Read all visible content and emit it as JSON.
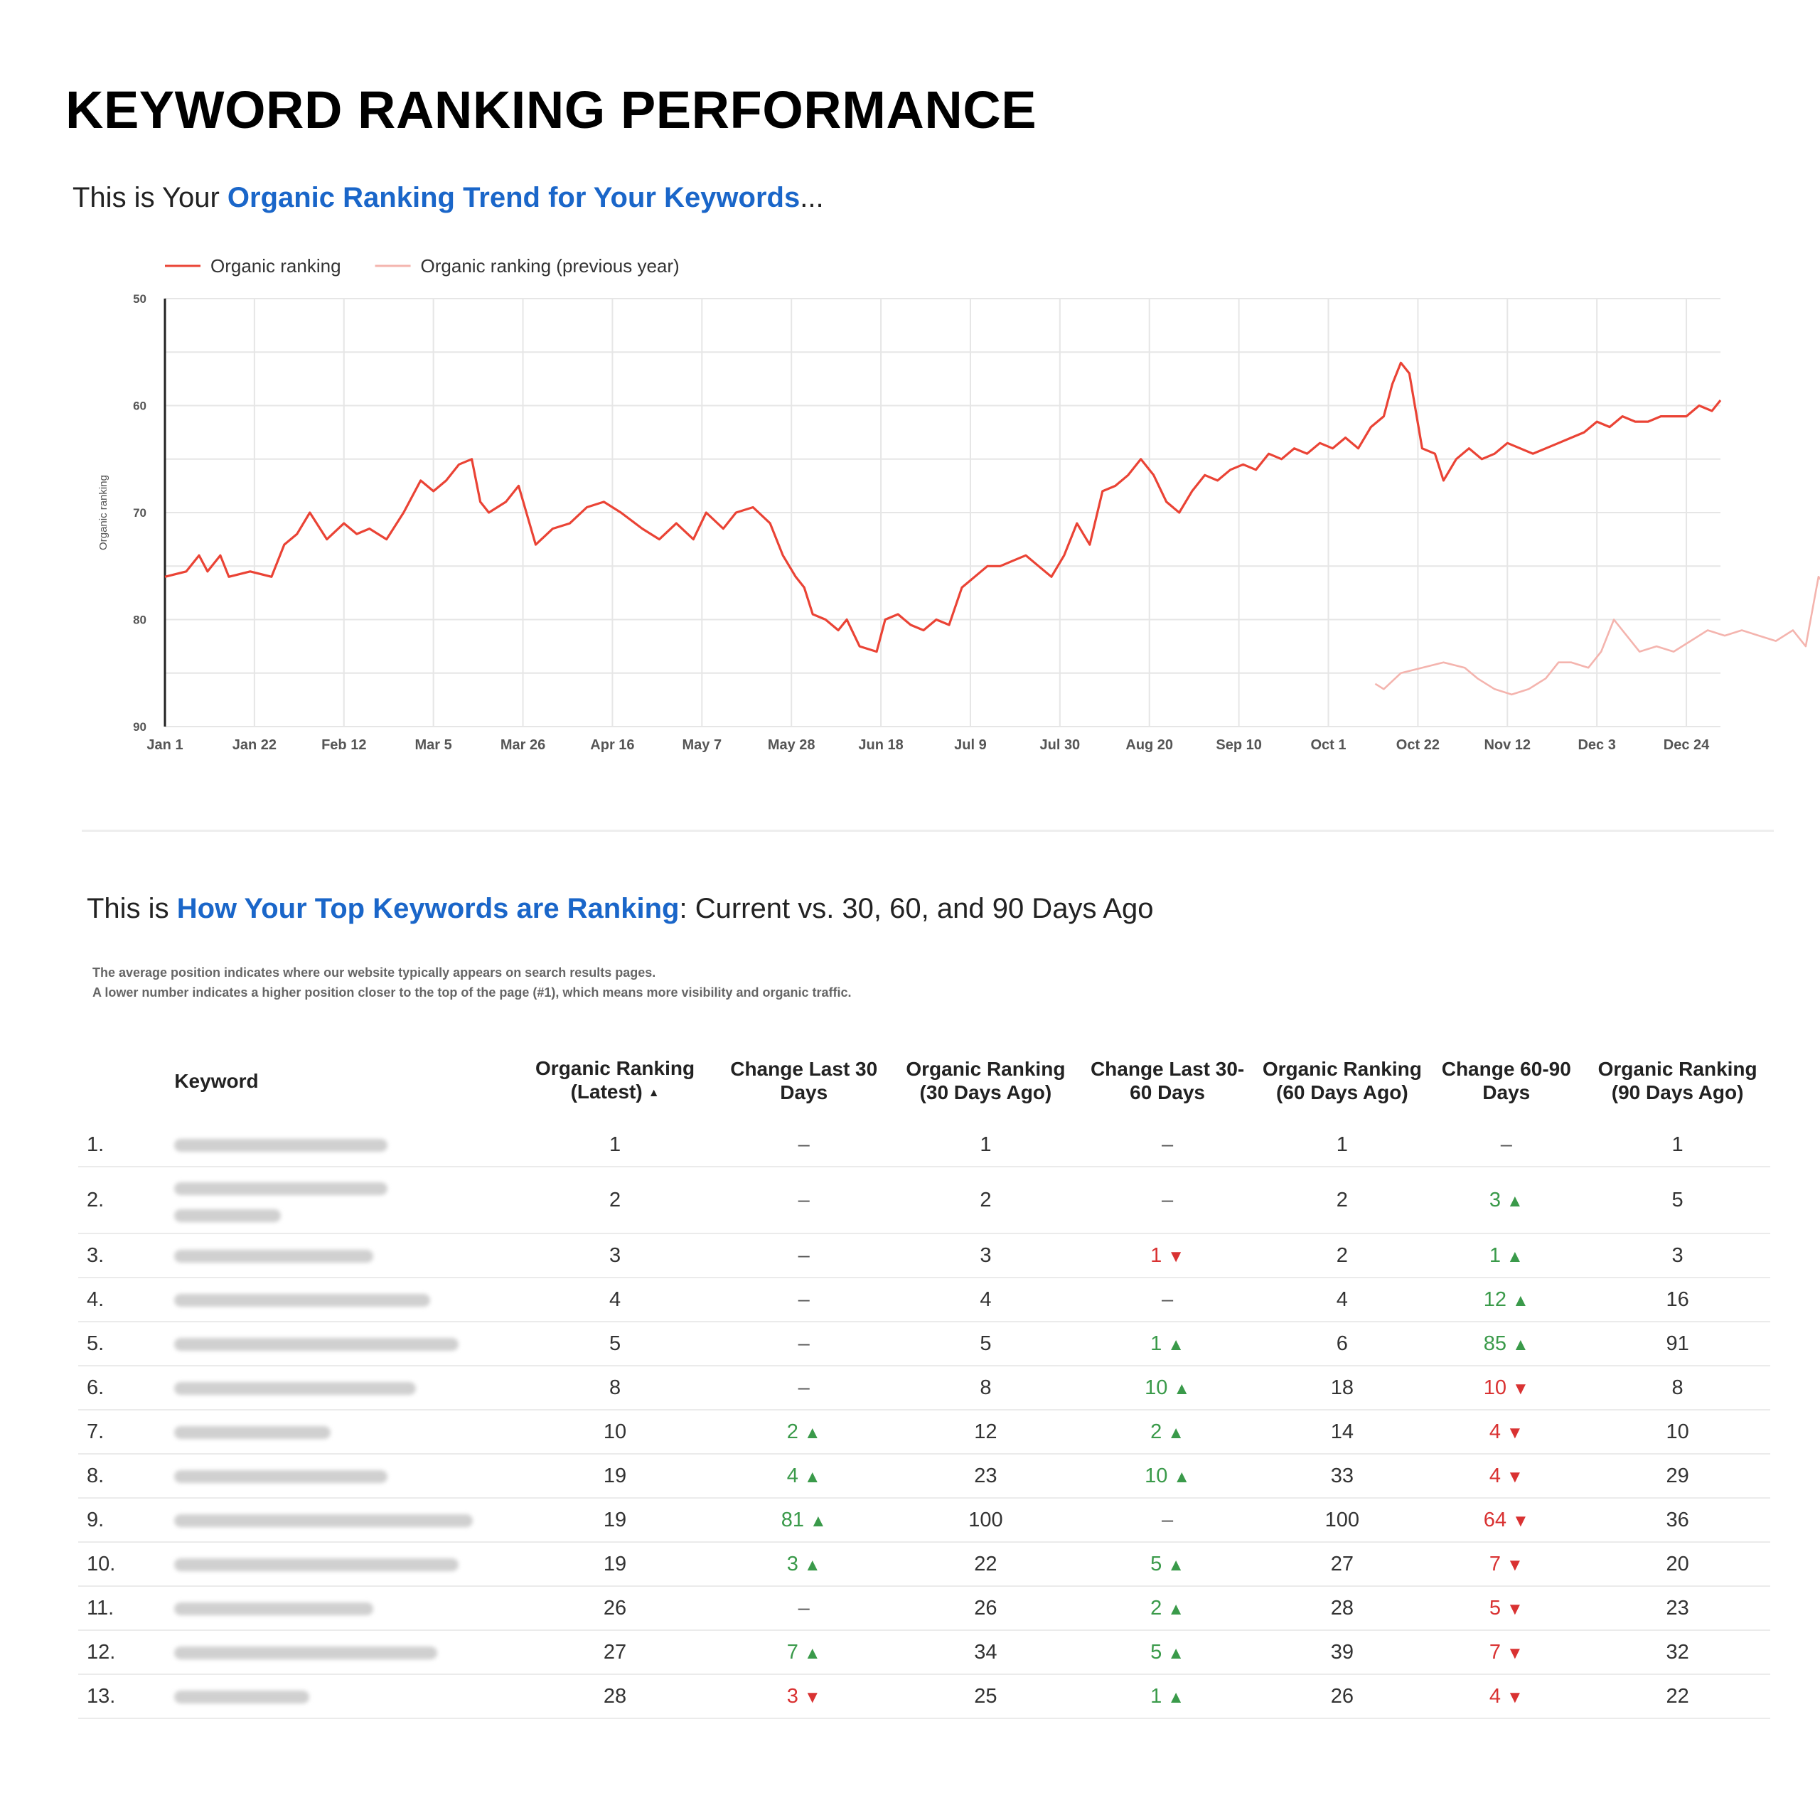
{
  "page": {
    "title": "KEYWORD RANKING PERFORMANCE",
    "sub1_pre": "This is Your ",
    "sub1_hl": "Organic Ranking Trend for Your Keywords",
    "sub1_post": "...",
    "sub2_pre": "This is ",
    "sub2_hl": "How Your Top Keywords are Ranking",
    "sub2_post": ": Current vs. 30, 60, and 90 Days Ago",
    "note1": "The average position indicates where our website typically appears on search results pages.",
    "note2": "A lower number indicates a higher position closer to the top of the page (#1), which means more visibility and organic traffic."
  },
  "colors": {
    "accent": "#1a66c9",
    "series_current": "#ea4335",
    "series_previous": "#f4b4ae",
    "up": "#3a9a4a",
    "down": "#d93232"
  },
  "icons": {
    "up": "▲",
    "down": "▼",
    "sort": "▲"
  },
  "chart_data": {
    "type": "line",
    "ylabel": "Organic ranking",
    "ylim": [
      90,
      50
    ],
    "y_reversed": true,
    "y_ticks": [
      "50",
      "60",
      "70",
      "80",
      "90"
    ],
    "x_ticks": [
      "Jan 1",
      "Jan 22",
      "Feb 12",
      "Mar 5",
      "Mar 26",
      "Apr 16",
      "May 7",
      "May 28",
      "Jun 18",
      "Jul 9",
      "Jul 30",
      "Aug 20",
      "Sep 10",
      "Oct 1",
      "Oct 22",
      "Nov 12",
      "Dec 3",
      "Dec 24"
    ],
    "grid": true,
    "legend_position": "top-left",
    "series": [
      {
        "name": "Organic ranking",
        "color": "#ea4335",
        "points": [
          [
            0,
            76
          ],
          [
            5,
            75.5
          ],
          [
            8,
            74
          ],
          [
            10,
            75.5
          ],
          [
            13,
            74
          ],
          [
            15,
            76
          ],
          [
            20,
            75.5
          ],
          [
            25,
            76
          ],
          [
            28,
            73
          ],
          [
            31,
            72
          ],
          [
            34,
            70
          ],
          [
            38,
            72.5
          ],
          [
            42,
            71
          ],
          [
            45,
            72
          ],
          [
            48,
            71.5
          ],
          [
            52,
            72.5
          ],
          [
            56,
            70
          ],
          [
            60,
            67
          ],
          [
            63,
            68
          ],
          [
            66,
            67
          ],
          [
            69,
            65.5
          ],
          [
            72,
            65
          ],
          [
            74,
            69
          ],
          [
            76,
            70
          ],
          [
            80,
            69
          ],
          [
            83,
            67.5
          ],
          [
            87,
            73
          ],
          [
            91,
            71.5
          ],
          [
            95,
            71
          ],
          [
            99,
            69.5
          ],
          [
            103,
            69
          ],
          [
            107,
            70
          ],
          [
            112,
            71.5
          ],
          [
            116,
            72.5
          ],
          [
            120,
            71
          ],
          [
            124,
            72.5
          ],
          [
            127,
            70
          ],
          [
            131,
            71.5
          ],
          [
            134,
            70
          ],
          [
            138,
            69.5
          ],
          [
            142,
            71
          ],
          [
            145,
            74
          ],
          [
            148,
            76
          ],
          [
            150,
            77
          ],
          [
            152,
            79.5
          ],
          [
            155,
            80
          ],
          [
            158,
            81
          ],
          [
            160,
            80
          ],
          [
            163,
            82.5
          ],
          [
            167,
            83
          ],
          [
            169,
            80
          ],
          [
            172,
            79.5
          ],
          [
            175,
            80.5
          ],
          [
            178,
            81
          ],
          [
            181,
            80
          ],
          [
            184,
            80.5
          ],
          [
            187,
            77
          ],
          [
            190,
            76
          ],
          [
            193,
            75
          ],
          [
            196,
            75
          ],
          [
            199,
            74.5
          ],
          [
            202,
            74
          ],
          [
            205,
            75
          ],
          [
            208,
            76
          ],
          [
            211,
            74
          ],
          [
            214,
            71
          ],
          [
            217,
            73
          ],
          [
            220,
            68
          ],
          [
            223,
            67.5
          ],
          [
            226,
            66.5
          ],
          [
            229,
            65
          ],
          [
            232,
            66.5
          ],
          [
            235,
            69
          ],
          [
            238,
            70
          ],
          [
            241,
            68
          ],
          [
            244,
            66.5
          ],
          [
            247,
            67
          ],
          [
            250,
            66
          ],
          [
            253,
            65.5
          ],
          [
            256,
            66
          ],
          [
            259,
            64.5
          ],
          [
            262,
            65
          ],
          [
            265,
            64
          ],
          [
            268,
            64.5
          ],
          [
            271,
            63.5
          ],
          [
            274,
            64
          ],
          [
            277,
            63
          ],
          [
            280,
            64
          ],
          [
            283,
            62
          ],
          [
            286,
            61
          ],
          [
            288,
            58
          ],
          [
            290,
            56
          ],
          [
            292,
            57
          ],
          [
            295,
            64
          ],
          [
            298,
            64.5
          ],
          [
            300,
            67
          ],
          [
            303,
            65
          ],
          [
            306,
            64
          ],
          [
            309,
            65
          ],
          [
            312,
            64.5
          ],
          [
            315,
            63.5
          ],
          [
            318,
            64
          ],
          [
            321,
            64.5
          ],
          [
            324,
            64
          ],
          [
            327,
            63.5
          ],
          [
            330,
            63
          ],
          [
            333,
            62.5
          ],
          [
            336,
            61.5
          ],
          [
            339,
            62
          ],
          [
            342,
            61
          ],
          [
            345,
            61.5
          ],
          [
            348,
            61.5
          ],
          [
            351,
            61
          ],
          [
            354,
            61
          ],
          [
            357,
            61
          ],
          [
            360,
            60
          ],
          [
            363,
            60.5
          ],
          [
            365,
            59.5
          ]
        ]
      },
      {
        "name": "Organic ranking (previous year)",
        "color": "#f4b4ae",
        "points": [
          [
            284,
            86
          ],
          [
            286,
            86.5
          ],
          [
            290,
            85
          ],
          [
            295,
            84.5
          ],
          [
            300,
            84
          ],
          [
            305,
            84.5
          ],
          [
            308,
            85.5
          ],
          [
            312,
            86.5
          ],
          [
            316,
            87
          ],
          [
            320,
            86.5
          ],
          [
            324,
            85.5
          ],
          [
            327,
            84
          ],
          [
            330,
            84
          ],
          [
            334,
            84.5
          ],
          [
            337,
            83
          ],
          [
            340,
            80
          ],
          [
            343,
            81.5
          ],
          [
            346,
            83
          ],
          [
            350,
            82.5
          ],
          [
            354,
            83
          ],
          [
            358,
            82
          ],
          [
            362,
            81
          ],
          [
            366,
            81.5
          ],
          [
            370,
            81
          ],
          [
            374,
            81.5
          ],
          [
            378,
            82
          ],
          [
            382,
            81
          ],
          [
            385,
            82.5
          ],
          [
            388,
            76
          ],
          [
            390,
            77
          ],
          [
            392,
            76
          ]
        ]
      }
    ]
  },
  "table": {
    "headers": [
      "Keyword",
      "Organic Ranking (Latest)",
      "Change Last 30 Days",
      "Organic Ranking (30 Days Ago)",
      "Change Last 30-60 Days",
      "Organic Ranking (60 Days Ago)",
      "Change 60-90 Days",
      "Organic Ranking (90 Days Ago)"
    ],
    "rows": [
      {
        "idx": "1.",
        "latest": "1",
        "c30": "–",
        "c30_dir": "none",
        "r30": "1",
        "c60": "–",
        "c60_dir": "none",
        "r60": "1",
        "c90": "–",
        "c90_dir": "none",
        "r90": "1"
      },
      {
        "idx": "2.",
        "latest": "2",
        "c30": "–",
        "c30_dir": "none",
        "r30": "2",
        "c60": "–",
        "c60_dir": "none",
        "r60": "2",
        "c90": "3",
        "c90_dir": "up",
        "r90": "5"
      },
      {
        "idx": "3.",
        "latest": "3",
        "c30": "–",
        "c30_dir": "none",
        "r30": "3",
        "c60": "1",
        "c60_dir": "down",
        "r60": "2",
        "c90": "1",
        "c90_dir": "up",
        "r90": "3"
      },
      {
        "idx": "4.",
        "latest": "4",
        "c30": "–",
        "c30_dir": "none",
        "r30": "4",
        "c60": "–",
        "c60_dir": "none",
        "r60": "4",
        "c90": "12",
        "c90_dir": "up",
        "r90": "16"
      },
      {
        "idx": "5.",
        "latest": "5",
        "c30": "–",
        "c30_dir": "none",
        "r30": "5",
        "c60": "1",
        "c60_dir": "up",
        "r60": "6",
        "c90": "85",
        "c90_dir": "up",
        "r90": "91"
      },
      {
        "idx": "6.",
        "latest": "8",
        "c30": "–",
        "c30_dir": "none",
        "r30": "8",
        "c60": "10",
        "c60_dir": "up",
        "r60": "18",
        "c90": "10",
        "c90_dir": "down",
        "r90": "8"
      },
      {
        "idx": "7.",
        "latest": "10",
        "c30": "2",
        "c30_dir": "up",
        "r30": "12",
        "c60": "2",
        "c60_dir": "up",
        "r60": "14",
        "c90": "4",
        "c90_dir": "down",
        "r90": "10"
      },
      {
        "idx": "8.",
        "latest": "19",
        "c30": "4",
        "c30_dir": "up",
        "r30": "23",
        "c60": "10",
        "c60_dir": "up",
        "r60": "33",
        "c90": "4",
        "c90_dir": "down",
        "r90": "29"
      },
      {
        "idx": "9.",
        "latest": "19",
        "c30": "81",
        "c30_dir": "up",
        "r30": "100",
        "c60": "–",
        "c60_dir": "none",
        "r60": "100",
        "c90": "64",
        "c90_dir": "down",
        "r90": "36"
      },
      {
        "idx": "10.",
        "latest": "19",
        "c30": "3",
        "c30_dir": "up",
        "r30": "22",
        "c60": "5",
        "c60_dir": "up",
        "r60": "27",
        "c90": "7",
        "c90_dir": "down",
        "r90": "20"
      },
      {
        "idx": "11.",
        "latest": "26",
        "c30": "–",
        "c30_dir": "none",
        "r30": "26",
        "c60": "2",
        "c60_dir": "up",
        "r60": "28",
        "c90": "5",
        "c90_dir": "down",
        "r90": "23"
      },
      {
        "idx": "12.",
        "latest": "27",
        "c30": "7",
        "c30_dir": "up",
        "r30": "34",
        "c60": "5",
        "c60_dir": "up",
        "r60": "39",
        "c90": "7",
        "c90_dir": "down",
        "r90": "32"
      },
      {
        "idx": "13.",
        "latest": "28",
        "c30": "3",
        "c30_dir": "down",
        "r30": "25",
        "c60": "1",
        "c60_dir": "up",
        "r60": "26",
        "c90": "4",
        "c90_dir": "down",
        "r90": "22"
      }
    ]
  }
}
